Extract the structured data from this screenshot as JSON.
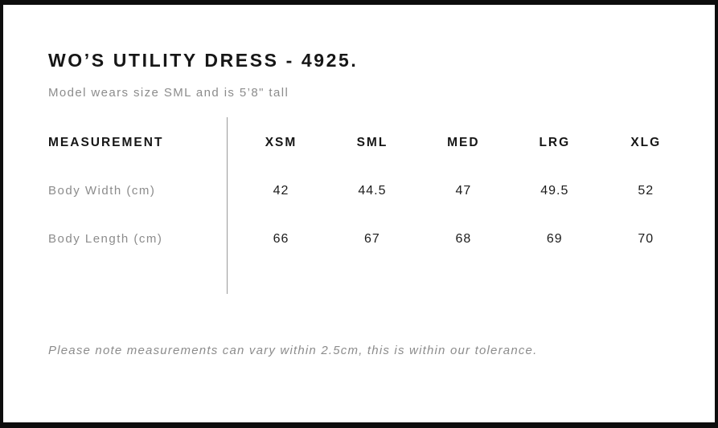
{
  "page": {
    "title": "WO’S UTILITY DRESS - 4925.",
    "subtitle": "Model wears size SML and is 5’8\" tall",
    "note": "Please note measurements can vary within 2.5cm, this is within our tolerance."
  },
  "size_table": {
    "label_header": "MEASUREMENT",
    "size_headers": [
      "XSM",
      "SML",
      "MED",
      "LRG",
      "XLG"
    ],
    "rows": [
      {
        "label": "Body Width (cm)",
        "values": [
          "42",
          "44.5",
          "47",
          "49.5",
          "52"
        ]
      },
      {
        "label": "Body Length (cm)",
        "values": [
          "66",
          "67",
          "68",
          "69",
          "70"
        ]
      }
    ]
  },
  "colors": {
    "frame": "#0d0d0d",
    "heading_text": "#161616",
    "muted_text": "#8c8c8c",
    "divider": "#9a9a9a",
    "background": "#ffffff"
  }
}
